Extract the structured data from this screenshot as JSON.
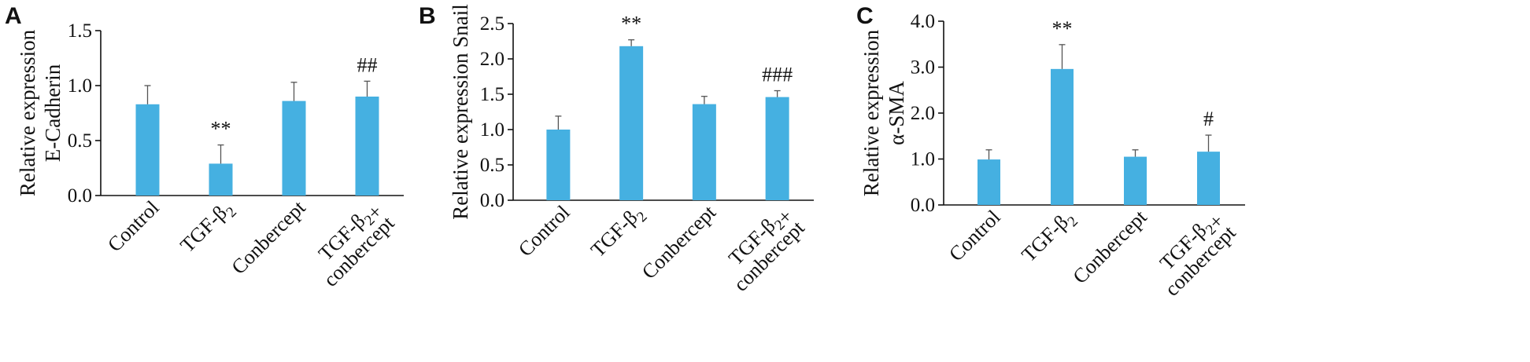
{
  "chart_data": [
    {
      "panel": "A",
      "type": "bar",
      "ylabel": [
        "Relative expression",
        "E-Cadherin"
      ],
      "ylim": [
        0,
        1.5
      ],
      "ticks": [
        "0.0",
        "0.5",
        "1.0",
        "1.5"
      ],
      "categories": [
        "Control",
        "TGF-β2",
        "Conbercept",
        "TGF-β2+ conbercept"
      ],
      "values": [
        0.83,
        0.29,
        0.86,
        0.9
      ],
      "errors": [
        0.17,
        0.17,
        0.17,
        0.14
      ],
      "annotations": [
        "",
        "**",
        "",
        "##"
      ],
      "bar_color": "#45b0e1",
      "grid": false
    },
    {
      "panel": "B",
      "type": "bar",
      "ylabel": [
        "Relative expression Snail"
      ],
      "ylim": [
        0,
        2.5
      ],
      "ticks": [
        "0.0",
        "0.5",
        "1.0",
        "1.5",
        "2.0",
        "2.5"
      ],
      "categories": [
        "Control",
        "TGF-β2",
        "Conbercept",
        "TGF-β2+ conbercept"
      ],
      "values": [
        1.0,
        2.18,
        1.36,
        1.46
      ],
      "errors": [
        0.19,
        0.09,
        0.11,
        0.09
      ],
      "annotations": [
        "",
        "**",
        "",
        "###"
      ],
      "bar_color": "#45b0e1",
      "grid": false
    },
    {
      "panel": "C",
      "type": "bar",
      "ylabel": [
        "Relative expression",
        "α-SMA"
      ],
      "ylim": [
        0,
        4.0
      ],
      "ticks": [
        "0.0",
        "1.0",
        "2.0",
        "3.0",
        "4.0"
      ],
      "categories": [
        "Control",
        "TGF-β2",
        "Conbercept",
        "TGF-β2+ conbercept"
      ],
      "values": [
        0.99,
        2.96,
        1.05,
        1.16
      ],
      "errors": [
        0.21,
        0.53,
        0.15,
        0.36
      ],
      "annotations": [
        "",
        "**",
        "",
        "#"
      ],
      "bar_color": "#45b0e1",
      "grid": false
    }
  ]
}
